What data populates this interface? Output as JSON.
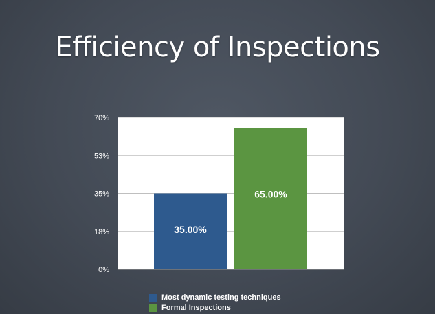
{
  "slide": {
    "title": "Efficiency of Inspections"
  },
  "colors": {
    "series_1": "#2e5a8e",
    "series_2": "#5b9541",
    "plot_background": "#ffffff",
    "gridline": "#bfbfbf",
    "axis_text": "#ffffff",
    "bar_label": "#ffffff"
  },
  "chart_data": {
    "type": "bar",
    "title": "",
    "xlabel": "",
    "ylabel": "",
    "categories": [
      ""
    ],
    "ylim": [
      0,
      70
    ],
    "yticks": [
      0,
      17.5,
      35,
      52.5,
      70
    ],
    "ytick_labels": [
      "0%",
      "18%",
      "35%",
      "53%",
      "70%"
    ],
    "grid": true,
    "legend_position": "bottom",
    "series": [
      {
        "name": "Most dynamic testing techniques",
        "values": [
          35
        ],
        "label": "35.00%",
        "color": "#2e5a8e"
      },
      {
        "name": "Formal Inspections",
        "values": [
          65
        ],
        "label": "65.00%",
        "color": "#5b9541"
      }
    ]
  }
}
